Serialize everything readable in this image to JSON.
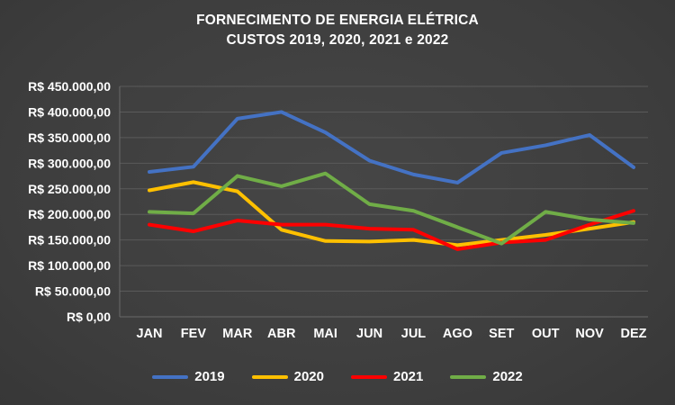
{
  "colors": {
    "background": "#3F3F3F",
    "gridline": "#5A5A5A",
    "axis": "#6A6A6A",
    "text": "#FFFFFF"
  },
  "chart_data": {
    "type": "line",
    "title_line1": "FORNECIMENTO DE ENERGIA ELÉTRICA",
    "title_line2": "CUSTOS 2019, 2020, 2021 e 2022",
    "categories": [
      "JAN",
      "FEV",
      "MAR",
      "ABR",
      "MAI",
      "JUN",
      "JUL",
      "AGO",
      "SET",
      "OUT",
      "NOV",
      "DEZ"
    ],
    "y_ticks": [
      "R$ 450.000,00",
      "R$ 400.000,00",
      "R$ 350.000,00",
      "R$ 300.000,00",
      "R$ 250.000,00",
      "R$ 200.000,00",
      "R$ 150.000,00",
      "R$ 100.000,00",
      "R$ 50.000,00",
      "R$ 0,00"
    ],
    "ylim": [
      0,
      450000
    ],
    "grid": true,
    "legend_position": "bottom",
    "series": [
      {
        "name": "2019",
        "color": "#4472C4",
        "values": [
          283000,
          293000,
          387000,
          400000,
          360000,
          305000,
          278000,
          262000,
          320000,
          335000,
          355000,
          292000
        ]
      },
      {
        "name": "2020",
        "color": "#FFC000",
        "values": [
          247000,
          263000,
          245000,
          170000,
          148000,
          147000,
          150000,
          140000,
          150000,
          160000,
          172000,
          185000
        ]
      },
      {
        "name": "2021",
        "color": "#FF0000",
        "values": [
          180000,
          167000,
          188000,
          180000,
          180000,
          172000,
          170000,
          132000,
          145000,
          150000,
          180000,
          207000
        ]
      },
      {
        "name": "2022",
        "color": "#70AD47",
        "values": [
          205000,
          202000,
          275000,
          255000,
          280000,
          220000,
          207000,
          175000,
          143000,
          205000,
          190000,
          183000
        ]
      }
    ]
  }
}
